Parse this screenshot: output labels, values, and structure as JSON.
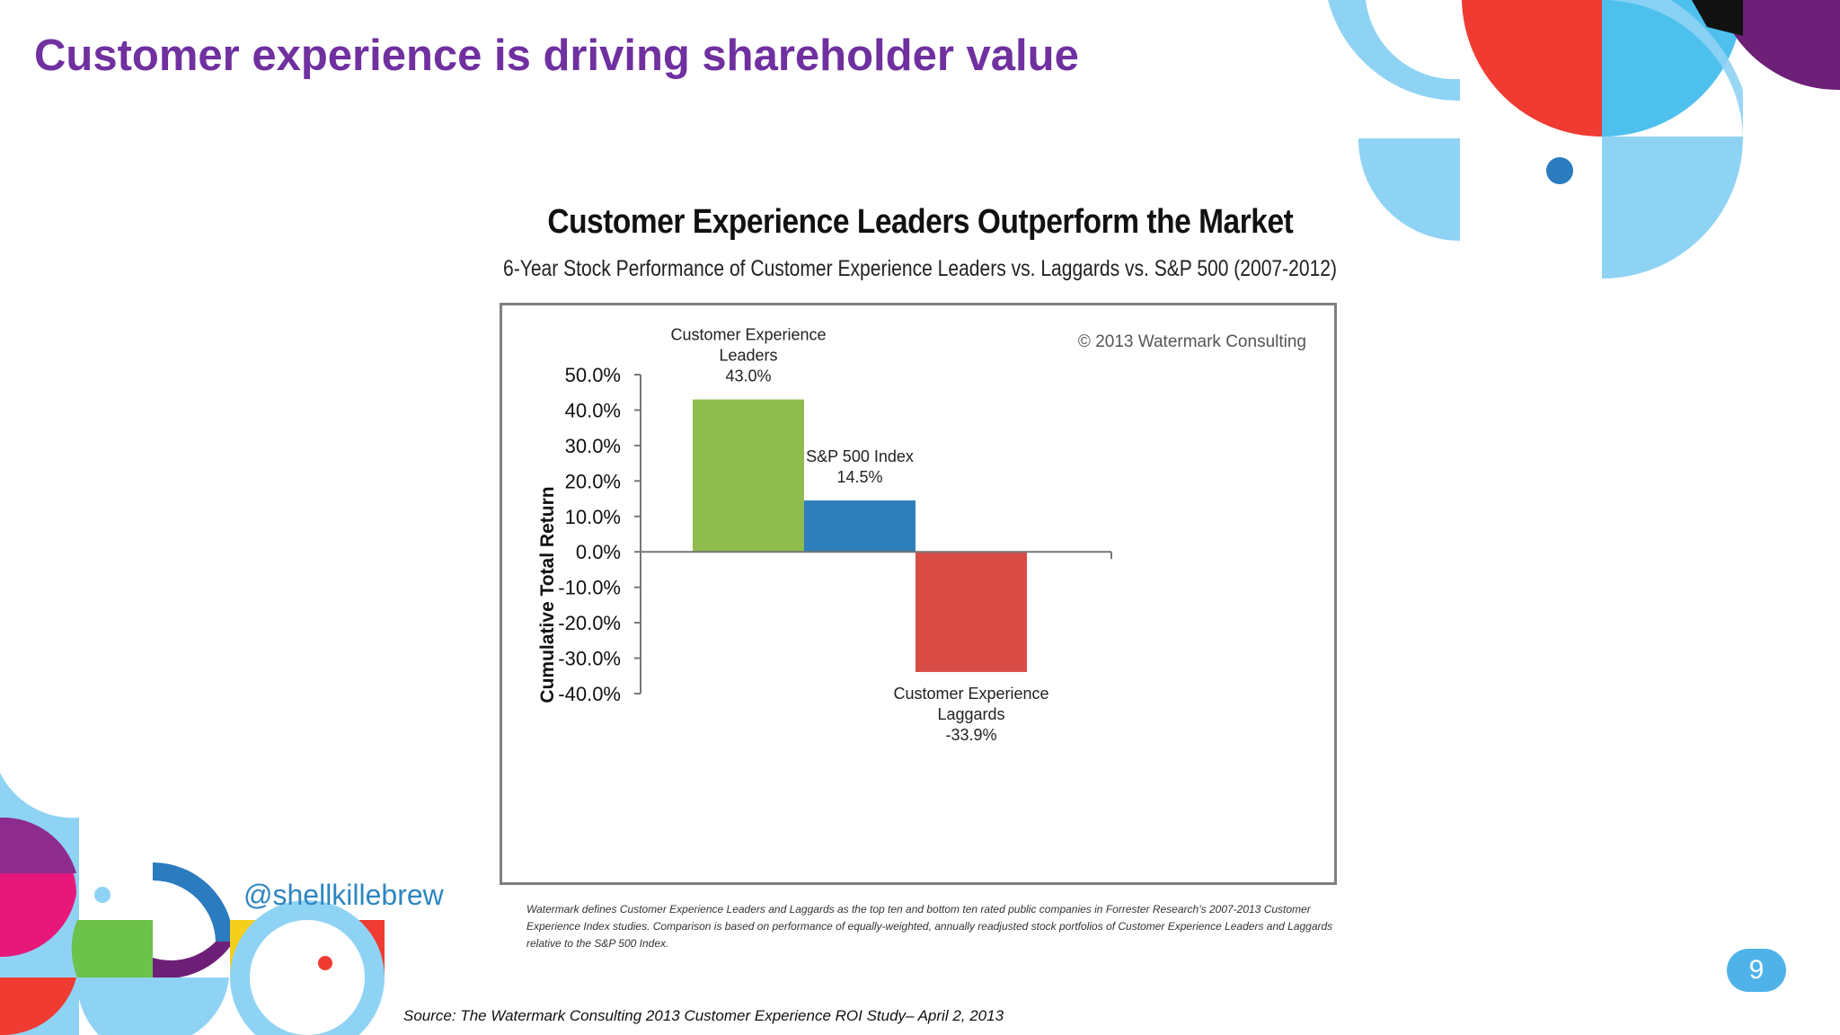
{
  "slide": {
    "title": "Customer experience is driving shareholder value",
    "handle": "@shellkillebrew",
    "page_number": "9",
    "source": "Source: The Watermark Consulting 2013 Customer Experience ROI Study– April 2, 2013",
    "footnote": "Watermark defines Customer Experience Leaders and Laggards as the top ten and bottom ten rated public companies in Forrester Research’s 2007-2013  Customer Experience Index studies. Comparison is based on performance of equally-weighted, annually readjusted stock portfolios of Customer Experience Leaders and Laggards relative to the S&P 500 Index.",
    "colors": {
      "title_purple": "#7030a0",
      "handle_blue": "#2e86c1",
      "badge_blue": "#4fb3ea"
    }
  },
  "chart_data": {
    "type": "bar",
    "title": "Customer Experience Leaders Outperform the Market",
    "subtitle": "6-Year Stock Performance of Customer Experience Leaders vs. Laggards vs. S&P 500 (2007-2012)",
    "copyright": "© 2013 Watermark Consulting",
    "ylabel": "Cumulative Total Return",
    "ylim": [
      -40,
      50
    ],
    "yticks": [
      "50.0%",
      "40.0%",
      "30.0%",
      "20.0%",
      "10.0%",
      "0.0%",
      "-10.0%",
      "-20.0%",
      "-30.0%",
      "-40.0%"
    ],
    "ytick_values": [
      50,
      40,
      30,
      20,
      10,
      0,
      -10,
      -20,
      -30,
      -40
    ],
    "grid": false,
    "bars": [
      {
        "label_lines": [
          "Customer Experience",
          "Leaders"
        ],
        "value": 43.0,
        "value_label": "43.0%",
        "color": "#8fbb4f"
      },
      {
        "label_lines": [
          "S&P 500 Index"
        ],
        "value": 14.5,
        "value_label": "14.5%",
        "color": "#2e7fbb"
      },
      {
        "label_lines": [
          "Customer Experience",
          "Laggards"
        ],
        "value": -33.9,
        "value_label": "-33.9%",
        "color": "#d94b45"
      }
    ]
  }
}
